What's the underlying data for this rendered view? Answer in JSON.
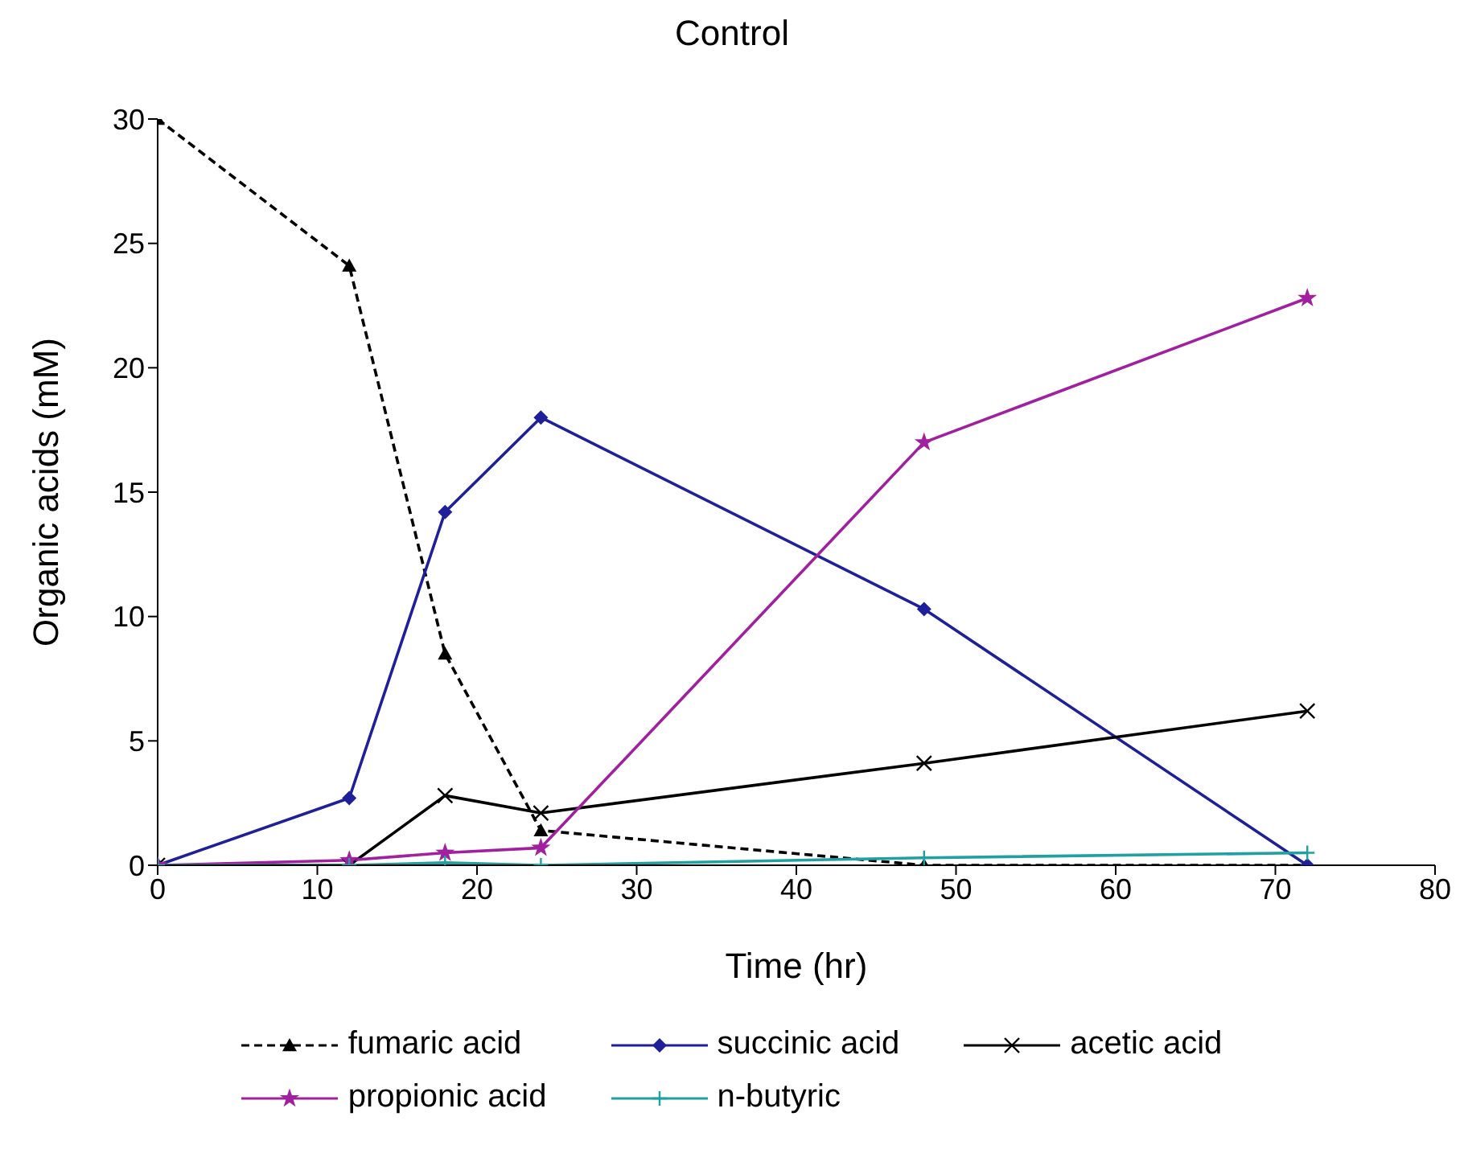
{
  "chart_data": {
    "type": "line",
    "title": "Control",
    "xlabel": "Time (hr)",
    "ylabel": "Organic acids (mM)",
    "x": [
      0,
      12,
      18,
      24,
      48,
      72
    ],
    "series": [
      {
        "name": "fumaric acid",
        "color": "#000000",
        "marker": "triangle",
        "line_style": "dashed",
        "values": [
          30,
          24.1,
          8.5,
          1.4,
          0,
          0
        ]
      },
      {
        "name": "succinic acid",
        "color": "#1f1f99",
        "marker": "diamond",
        "line_style": "solid",
        "values": [
          0,
          2.7,
          14.2,
          18,
          10.3,
          0
        ]
      },
      {
        "name": "acetic acid",
        "color": "#000000",
        "marker": "cross",
        "line_style": "solid",
        "values": [
          0,
          0,
          2.8,
          2.1,
          4.1,
          6.2
        ]
      },
      {
        "name": "propionic acid",
        "color": "#a020a0",
        "marker": "star",
        "line_style": "solid",
        "values": [
          0,
          0.2,
          0.5,
          0.7,
          17,
          22.8
        ]
      },
      {
        "name": "n-butyric",
        "color": "#20a0a0",
        "marker": "plus",
        "line_style": "solid",
        "values": [
          0,
          0,
          0.1,
          0,
          0.3,
          0.5
        ]
      }
    ],
    "xlim": [
      0,
      80
    ],
    "xticks": [
      0,
      10,
      20,
      30,
      40,
      50,
      60,
      70,
      80
    ],
    "ylim": [
      0,
      30
    ],
    "yticks": [
      0,
      5,
      10,
      15,
      20,
      25,
      30
    ],
    "grid": false,
    "legend": "bottom"
  }
}
